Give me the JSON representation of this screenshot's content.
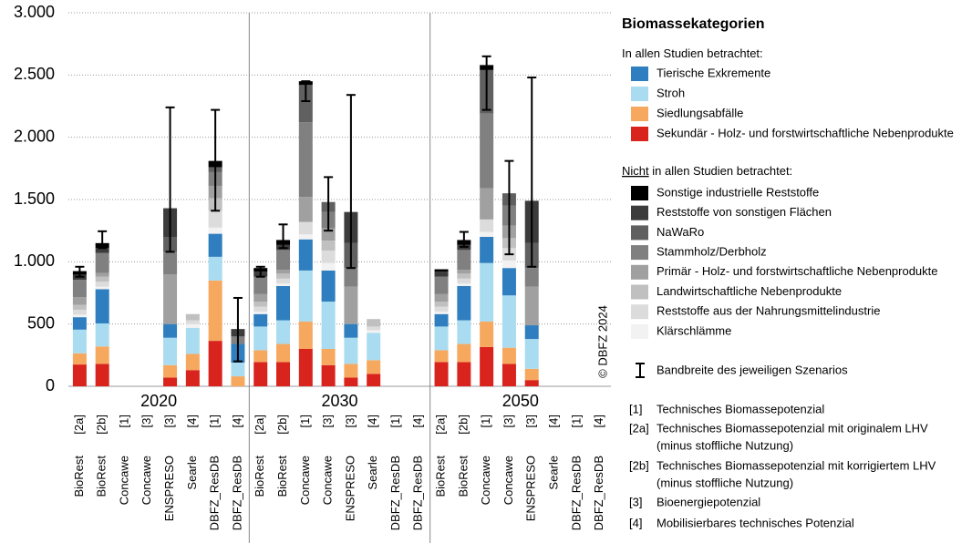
{
  "chart_data": {
    "type": "stacked_bar",
    "ylim": [
      0,
      3000
    ],
    "yticks": [
      0,
      500,
      {
        "value": 1000,
        "label": "1.000"
      },
      {
        "value": 1500,
        "label": "1.500"
      },
      {
        "value": 2000,
        "label": "2.000"
      },
      {
        "value": 2500,
        "label": "2.500"
      },
      {
        "value": 3000,
        "label": "3.000"
      }
    ],
    "grid": true,
    "x_groups": [
      "2020",
      "2030",
      "2050"
    ],
    "categories": [
      "BioRest",
      "BioRest",
      "Concawe",
      "Concawe",
      "ENSPRESO",
      "Searle",
      "DBFZ_ResDB",
      "DBFZ_ResDB"
    ],
    "category_refs": [
      "[2a]",
      "[2b]",
      "[1]",
      "[3]",
      "[3]",
      "[4]",
      "[1]",
      "[4]"
    ],
    "legend_title": "Biomassekategorien",
    "series_groups": [
      {
        "title": "In allen Studien betrachtet:",
        "series": [
          {
            "name": "Tierische Exkremente",
            "color": "#2f7ebf",
            "values": [
              100,
              275,
              null,
              null,
              110,
              0,
              185,
              150,
              100,
              275,
              250,
              250,
              110,
              0,
              null,
              null,
              100,
              275,
              210,
              220,
              110,
              null,
              null,
              null
            ]
          },
          {
            "name": "Stroh",
            "color": "#a9dcf0",
            "values": [
              190,
              185,
              null,
              null,
              220,
              210,
              190,
              110,
              190,
              190,
              410,
              380,
              210,
              220,
              null,
              null,
              190,
              190,
              470,
              420,
              240,
              null,
              null,
              null
            ]
          },
          {
            "name": "Siedlungsabfälle",
            "color": "#f7a85f",
            "values": [
              90,
              140,
              null,
              null,
              100,
              130,
              485,
              80,
              95,
              145,
              220,
              130,
              110,
              110,
              null,
              null,
              95,
              145,
              205,
              130,
              90,
              null,
              null,
              null
            ]
          },
          {
            "name": "Sekundär - Holz- und forstwirtschaftliche Nebenprodukte",
            "color": "#d9231d",
            "values": [
              175,
              180,
              null,
              null,
              70,
              130,
              365,
              0,
              195,
              195,
              300,
              170,
              70,
              100,
              null,
              null,
              195,
              195,
              315,
              180,
              50,
              null,
              null,
              null
            ]
          }
        ]
      },
      {
        "title_underlined": "Nicht",
        "title": " in allen Studien betrachtet:",
        "series": [
          {
            "name": "Sonstige industrielle Reststoffe",
            "color": "#000000",
            "values": [
              30,
              40,
              null,
              null,
              0,
              0,
              50,
              0,
              30,
              40,
              30,
              0,
              0,
              0,
              null,
              null,
              20,
              40,
              40,
              0,
              0,
              null,
              null,
              null
            ]
          },
          {
            "name": "Reststoffe von sonstigen Flächen",
            "color": "#3c3c3c",
            "values": [
              40,
              40,
              null,
              null,
              230,
              0,
              0,
              60,
              40,
              40,
              0,
              0,
              250,
              0,
              null,
              null,
              40,
              40,
              0,
              0,
              340,
              null,
              null,
              null
            ]
          },
          {
            "name": "NaWaRo",
            "color": "#606060",
            "values": [
              0,
              0,
              null,
              null,
              120,
              0,
              40,
              0,
              0,
              0,
              300,
              80,
              200,
              0,
              null,
              null,
              0,
              0,
              350,
              100,
              200,
              null,
              null,
              null
            ]
          },
          {
            "name": "Stammholz/Derbholz",
            "color": "#808080",
            "values": [
              140,
              160,
              null,
              null,
              180,
              0,
              110,
              60,
              140,
              160,
              600,
              130,
              150,
              0,
              null,
              null,
              140,
              160,
              600,
              160,
              150,
              null,
              null,
              null
            ]
          },
          {
            "name": "Primär - Holz- und forstwirtschaftliche Nebenprodukte",
            "color": "#a0a0a0",
            "values": [
              60,
              30,
              null,
              null,
              400,
              0,
              100,
              0,
              60,
              30,
              200,
              100,
              300,
              0,
              null,
              null,
              60,
              30,
              250,
              100,
              310,
              null,
              null,
              null
            ]
          },
          {
            "name": "Landwirtschaftliche Nebenprodukte",
            "color": "#c0c0c0",
            "values": [
              40,
              40,
              null,
              null,
              0,
              50,
              100,
              0,
              40,
              40,
              0,
              80,
              0,
              60,
              null,
              null,
              40,
              40,
              0,
              80,
              0,
              null,
              null,
              null
            ]
          },
          {
            "name": "Reststoffe aus der Nahrungsmittelindustrie",
            "color": "#dcdcdc",
            "values": [
              40,
              40,
              null,
              null,
              0,
              30,
              135,
              0,
              40,
              40,
              100,
              100,
              0,
              30,
              null,
              null,
              40,
              40,
              100,
              100,
              0,
              null,
              null,
              null
            ]
          },
          {
            "name": "Klärschlämme",
            "color": "#f2f2f2",
            "values": [
              20,
              20,
              null,
              null,
              0,
              30,
              50,
              0,
              20,
              20,
              40,
              60,
              0,
              20,
              null,
              null,
              20,
              20,
              40,
              60,
              0,
              null,
              null,
              null
            ]
          }
        ]
      }
    ],
    "ranges": [
      [
        880,
        960
      ],
      [
        1110,
        1245
      ],
      null,
      null,
      [
        1080,
        2240
      ],
      null,
      [
        1410,
        2220
      ],
      [
        200,
        710
      ],
      [
        880,
        960
      ],
      [
        1110,
        1300
      ],
      [
        2290,
        2450
      ],
      [
        1250,
        1680
      ],
      [
        950,
        2340
      ],
      null,
      null,
      null,
      null,
      [
        1120,
        1240
      ],
      [
        2220,
        2650
      ],
      [
        1060,
        1810
      ],
      [
        960,
        2480
      ],
      null,
      null,
      null
    ],
    "range_label": "Bandbreite des jeweiligen Szenarios",
    "copyright": "© DBFZ 2024",
    "footnotes": [
      {
        "ref": "[1]",
        "lines": [
          "Technisches Biomassepotenzial"
        ]
      },
      {
        "ref": "[2a]",
        "lines": [
          "Technisches Biomassepotenzial mit originalem LHV",
          "(minus stoffliche Nutzung)"
        ]
      },
      {
        "ref": "[2b]",
        "lines": [
          "Technisches Biomassepotenzial mit korrigiertem LHV",
          "(minus stoffliche Nutzung)"
        ]
      },
      {
        "ref": "[3]",
        "lines": [
          "Bioenergiepotenzial"
        ]
      },
      {
        "ref": "[4]",
        "lines": [
          "Mobilisierbares technisches Potenzial"
        ]
      }
    ]
  }
}
